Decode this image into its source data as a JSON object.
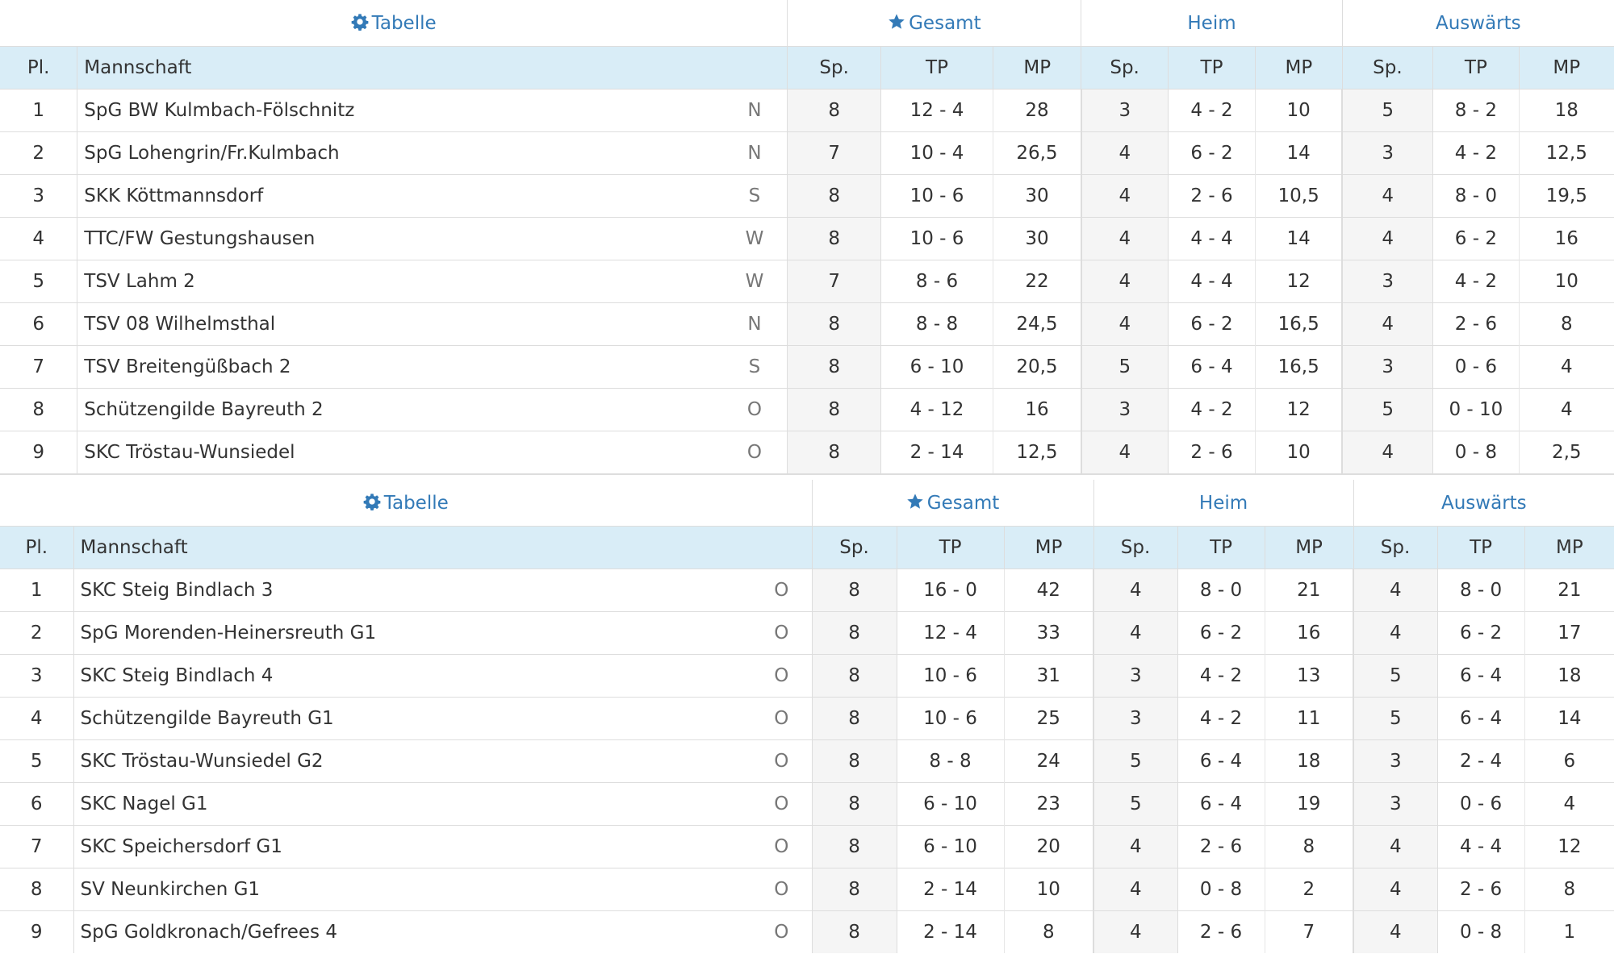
{
  "icons": {
    "table_header": "gear-icon",
    "total_header": "star-icon"
  },
  "colors": {
    "link": "#337ab7",
    "header_bg": "#d9edf7",
    "shade_bg": "#f5f5f5"
  },
  "tables": [
    {
      "groups": {
        "table": "Tabelle",
        "total": "Gesamt",
        "home": "Heim",
        "away": "Auswärts"
      },
      "columns": {
        "pl": "Pl.",
        "team": "Mannschaft",
        "sp": "Sp.",
        "tp": "TP",
        "mp": "MP"
      },
      "rows": [
        {
          "pl": "1",
          "team": "SpG BW Kulmbach-Fölschnitz",
          "region": "N",
          "total": {
            "sp": "8",
            "tp": "12 - 4",
            "mp": "28"
          },
          "home": {
            "sp": "3",
            "tp": "4 - 2",
            "mp": "10"
          },
          "away": {
            "sp": "5",
            "tp": "8 - 2",
            "mp": "18"
          }
        },
        {
          "pl": "2",
          "team": "SpG Lohengrin/Fr.Kulmbach",
          "region": "N",
          "total": {
            "sp": "7",
            "tp": "10 - 4",
            "mp": "26,5"
          },
          "home": {
            "sp": "4",
            "tp": "6 - 2",
            "mp": "14"
          },
          "away": {
            "sp": "3",
            "tp": "4 - 2",
            "mp": "12,5"
          }
        },
        {
          "pl": "3",
          "team": "SKK Köttmannsdorf",
          "region": "S",
          "total": {
            "sp": "8",
            "tp": "10 - 6",
            "mp": "30"
          },
          "home": {
            "sp": "4",
            "tp": "2 - 6",
            "mp": "10,5"
          },
          "away": {
            "sp": "4",
            "tp": "8 - 0",
            "mp": "19,5"
          }
        },
        {
          "pl": "4",
          "team": "TTC/FW Gestungshausen",
          "region": "W",
          "total": {
            "sp": "8",
            "tp": "10 - 6",
            "mp": "30"
          },
          "home": {
            "sp": "4",
            "tp": "4 - 4",
            "mp": "14"
          },
          "away": {
            "sp": "4",
            "tp": "6 - 2",
            "mp": "16"
          }
        },
        {
          "pl": "5",
          "team": "TSV Lahm 2",
          "region": "W",
          "total": {
            "sp": "7",
            "tp": "8 - 6",
            "mp": "22"
          },
          "home": {
            "sp": "4",
            "tp": "4 - 4",
            "mp": "12"
          },
          "away": {
            "sp": "3",
            "tp": "4 - 2",
            "mp": "10"
          }
        },
        {
          "pl": "6",
          "team": "TSV 08 Wilhelmsthal",
          "region": "N",
          "total": {
            "sp": "8",
            "tp": "8 - 8",
            "mp": "24,5"
          },
          "home": {
            "sp": "4",
            "tp": "6 - 2",
            "mp": "16,5"
          },
          "away": {
            "sp": "4",
            "tp": "2 - 6",
            "mp": "8"
          }
        },
        {
          "pl": "7",
          "team": "TSV Breitengüßbach 2",
          "region": "S",
          "total": {
            "sp": "8",
            "tp": "6 - 10",
            "mp": "20,5"
          },
          "home": {
            "sp": "5",
            "tp": "6 - 4",
            "mp": "16,5"
          },
          "away": {
            "sp": "3",
            "tp": "0 - 6",
            "mp": "4"
          }
        },
        {
          "pl": "8",
          "team": "Schützengilde Bayreuth 2",
          "region": "O",
          "total": {
            "sp": "8",
            "tp": "4 - 12",
            "mp": "16"
          },
          "home": {
            "sp": "3",
            "tp": "4 - 2",
            "mp": "12"
          },
          "away": {
            "sp": "5",
            "tp": "0 - 10",
            "mp": "4"
          }
        },
        {
          "pl": "9",
          "team": "SKC Tröstau-Wunsiedel",
          "region": "O",
          "total": {
            "sp": "8",
            "tp": "2 - 14",
            "mp": "12,5"
          },
          "home": {
            "sp": "4",
            "tp": "2 - 6",
            "mp": "10"
          },
          "away": {
            "sp": "4",
            "tp": "0 - 8",
            "mp": "2,5"
          }
        }
      ]
    },
    {
      "groups": {
        "table": "Tabelle",
        "total": "Gesamt",
        "home": "Heim",
        "away": "Auswärts"
      },
      "columns": {
        "pl": "Pl.",
        "team": "Mannschaft",
        "sp": "Sp.",
        "tp": "TP",
        "mp": "MP"
      },
      "rows": [
        {
          "pl": "1",
          "team": "SKC Steig Bindlach 3",
          "region": "O",
          "total": {
            "sp": "8",
            "tp": "16 - 0",
            "mp": "42"
          },
          "home": {
            "sp": "4",
            "tp": "8 - 0",
            "mp": "21"
          },
          "away": {
            "sp": "4",
            "tp": "8 - 0",
            "mp": "21"
          }
        },
        {
          "pl": "2",
          "team": "SpG Morenden-Heinersreuth G1",
          "region": "O",
          "total": {
            "sp": "8",
            "tp": "12 - 4",
            "mp": "33"
          },
          "home": {
            "sp": "4",
            "tp": "6 - 2",
            "mp": "16"
          },
          "away": {
            "sp": "4",
            "tp": "6 - 2",
            "mp": "17"
          }
        },
        {
          "pl": "3",
          "team": "SKC Steig Bindlach 4",
          "region": "O",
          "total": {
            "sp": "8",
            "tp": "10 - 6",
            "mp": "31"
          },
          "home": {
            "sp": "3",
            "tp": "4 - 2",
            "mp": "13"
          },
          "away": {
            "sp": "5",
            "tp": "6 - 4",
            "mp": "18"
          }
        },
        {
          "pl": "4",
          "team": "Schützengilde Bayreuth G1",
          "region": "O",
          "total": {
            "sp": "8",
            "tp": "10 - 6",
            "mp": "25"
          },
          "home": {
            "sp": "3",
            "tp": "4 - 2",
            "mp": "11"
          },
          "away": {
            "sp": "5",
            "tp": "6 - 4",
            "mp": "14"
          }
        },
        {
          "pl": "5",
          "team": "SKC Tröstau-Wunsiedel G2",
          "region": "O",
          "total": {
            "sp": "8",
            "tp": "8 - 8",
            "mp": "24"
          },
          "home": {
            "sp": "5",
            "tp": "6 - 4",
            "mp": "18"
          },
          "away": {
            "sp": "3",
            "tp": "2 - 4",
            "mp": "6"
          }
        },
        {
          "pl": "6",
          "team": "SKC Nagel G1",
          "region": "O",
          "total": {
            "sp": "8",
            "tp": "6 - 10",
            "mp": "23"
          },
          "home": {
            "sp": "5",
            "tp": "6 - 4",
            "mp": "19"
          },
          "away": {
            "sp": "3",
            "tp": "0 - 6",
            "mp": "4"
          }
        },
        {
          "pl": "7",
          "team": "SKC Speichersdorf G1",
          "region": "O",
          "total": {
            "sp": "8",
            "tp": "6 - 10",
            "mp": "20"
          },
          "home": {
            "sp": "4",
            "tp": "2 - 6",
            "mp": "8"
          },
          "away": {
            "sp": "4",
            "tp": "4 - 4",
            "mp": "12"
          }
        },
        {
          "pl": "8",
          "team": "SV Neunkirchen G1",
          "region": "O",
          "total": {
            "sp": "8",
            "tp": "2 - 14",
            "mp": "10"
          },
          "home": {
            "sp": "4",
            "tp": "0 - 8",
            "mp": "2"
          },
          "away": {
            "sp": "4",
            "tp": "2 - 6",
            "mp": "8"
          }
        },
        {
          "pl": "9",
          "team": "SpG Goldkronach/Gefrees 4",
          "region": "O",
          "total": {
            "sp": "8",
            "tp": "2 - 14",
            "mp": "8"
          },
          "home": {
            "sp": "4",
            "tp": "2 - 6",
            "mp": "7"
          },
          "away": {
            "sp": "4",
            "tp": "0 - 8",
            "mp": "1"
          }
        }
      ]
    }
  ]
}
